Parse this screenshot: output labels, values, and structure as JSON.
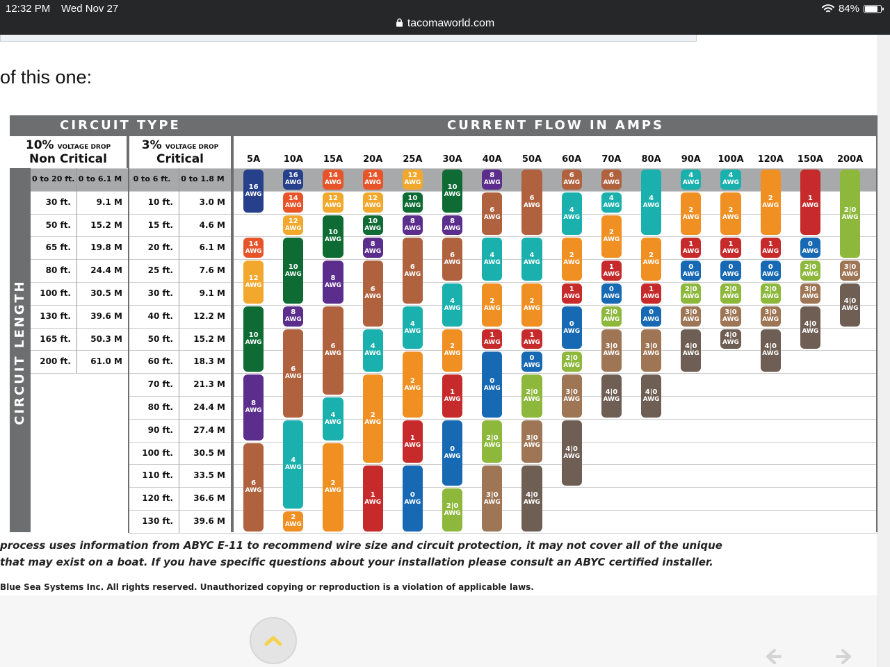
{
  "status_bar": {
    "time": "12:32 PM",
    "date": "Wed Nov 27",
    "url": "tacomaworld.com",
    "battery": "84%",
    "battery_level": 0.84
  },
  "intro_text": "of this one:",
  "table": {
    "circuit_type_title": "CIRCUIT TYPE",
    "current_title": "CURRENT FLOW IN AMPS",
    "circuit_length_label": "CIRCUIT LENGTH",
    "non_critical": {
      "pct": "10%",
      "drop": "VOLTAGE DROP",
      "label": "Non Critical"
    },
    "critical": {
      "pct": "3%",
      "drop": "VOLTAGE DROP",
      "label": "Critical"
    },
    "amps": [
      "5A",
      "10A",
      "15A",
      "20A",
      "25A",
      "30A",
      "40A",
      "50A",
      "60A",
      "70A",
      "80A",
      "90A",
      "100A",
      "120A",
      "150A",
      "200A"
    ],
    "lengths": [
      [
        "0 to 20 ft.",
        "0 to 6.1 M",
        "0 to 6 ft.",
        "0 to 1.8 M"
      ],
      [
        "30 ft.",
        "9.1 M",
        "10 ft.",
        "3.0 M"
      ],
      [
        "50 ft.",
        "15.2 M",
        "15 ft.",
        "4.6 M"
      ],
      [
        "65 ft.",
        "19.8 M",
        "20 ft.",
        "6.1 M"
      ],
      [
        "80 ft.",
        "24.4 M",
        "25 ft.",
        "7.6 M"
      ],
      [
        "100 ft.",
        "30.5 M",
        "30 ft.",
        "9.1 M"
      ],
      [
        "130 ft.",
        "39.6 M",
        "40 ft.",
        "12.2 M"
      ],
      [
        "165 ft.",
        "50.3 M",
        "50 ft.",
        "15.2 M"
      ],
      [
        "200 ft.",
        "61.0 M",
        "60 ft.",
        "18.3 M"
      ],
      [
        "",
        "",
        "70 ft.",
        "21.3 M"
      ],
      [
        "",
        "",
        "80 ft.",
        "24.4 M"
      ],
      [
        "",
        "",
        "90 ft.",
        "27.4 M"
      ],
      [
        "",
        "",
        "100 ft.",
        "30.5 M"
      ],
      [
        "",
        "",
        "110 ft.",
        "33.5 M"
      ],
      [
        "",
        "",
        "120 ft.",
        "36.6 M"
      ],
      [
        "",
        "",
        "130 ft.",
        "39.6 M"
      ]
    ],
    "awg_label": "AWG",
    "awg_colors": {
      "16": "#27408b",
      "14": "#e8542a",
      "12": "#f2a82c",
      "10": "#0e6b34",
      "8": "#5b2d8c",
      "6": "#b0623f",
      "4": "#19b0ad",
      "2": "#f08f22",
      "1": "#c62a2a",
      "0": "#1769b3",
      "2|0": "#8db83c",
      "3|0": "#9e7555",
      "4|0": "#6e5e53"
    },
    "columns": [
      [
        [
          0,
          2,
          "16"
        ],
        [
          3,
          4,
          "14"
        ],
        [
          4,
          6,
          "12"
        ],
        [
          6,
          9,
          "10"
        ],
        [
          9,
          12,
          "8"
        ],
        [
          12,
          16,
          "6"
        ]
      ],
      [
        [
          0,
          1,
          "16"
        ],
        [
          1,
          2,
          "14"
        ],
        [
          2,
          3,
          "12"
        ],
        [
          3,
          6,
          "10"
        ],
        [
          6,
          7,
          "8"
        ],
        [
          7,
          11,
          "6"
        ],
        [
          11,
          15,
          "4"
        ],
        [
          15,
          16,
          "2"
        ]
      ],
      [
        [
          0,
          1,
          "14"
        ],
        [
          1,
          2,
          "12"
        ],
        [
          2,
          4,
          "10"
        ],
        [
          4,
          6,
          "8"
        ],
        [
          6,
          10,
          "6"
        ],
        [
          10,
          12,
          "4"
        ],
        [
          12,
          16,
          "2"
        ]
      ],
      [
        [
          0,
          1,
          "14"
        ],
        [
          1,
          2,
          "12"
        ],
        [
          2,
          3,
          "10"
        ],
        [
          3,
          4,
          "8"
        ],
        [
          4,
          7,
          "6"
        ],
        [
          7,
          9,
          "4"
        ],
        [
          9,
          13,
          "2"
        ],
        [
          13,
          16,
          "1"
        ]
      ],
      [
        [
          0,
          1,
          "12"
        ],
        [
          1,
          2,
          "10"
        ],
        [
          2,
          3,
          "8"
        ],
        [
          3,
          6,
          "6"
        ],
        [
          6,
          8,
          "4"
        ],
        [
          8,
          11,
          "2"
        ],
        [
          11,
          13,
          "1"
        ],
        [
          13,
          16,
          "0"
        ]
      ],
      [
        [
          0,
          2,
          "10"
        ],
        [
          2,
          3,
          "8"
        ],
        [
          3,
          5,
          "6"
        ],
        [
          5,
          7,
          "4"
        ],
        [
          7,
          9,
          "2"
        ],
        [
          9,
          11,
          "1"
        ],
        [
          11,
          14,
          "0"
        ],
        [
          14,
          16,
          "2|0"
        ]
      ],
      [
        [
          0,
          1,
          "8"
        ],
        [
          1,
          3,
          "6"
        ],
        [
          3,
          5,
          "4"
        ],
        [
          5,
          7,
          "2"
        ],
        [
          7,
          8,
          "1"
        ],
        [
          8,
          11,
          "0"
        ],
        [
          11,
          13,
          "2|0"
        ],
        [
          13,
          16,
          "3|0"
        ]
      ],
      [
        [
          0,
          3,
          "6"
        ],
        [
          3,
          5,
          "4"
        ],
        [
          5,
          7,
          "2"
        ],
        [
          7,
          8,
          "1"
        ],
        [
          8,
          9,
          "0"
        ],
        [
          9,
          11,
          "2|0"
        ],
        [
          11,
          13,
          "3|0"
        ],
        [
          13,
          16,
          "4|0"
        ]
      ],
      [
        [
          0,
          1,
          "6"
        ],
        [
          1,
          3,
          "4"
        ],
        [
          3,
          5,
          "2"
        ],
        [
          5,
          6,
          "1"
        ],
        [
          6,
          8,
          "0"
        ],
        [
          8,
          9,
          "2|0"
        ],
        [
          9,
          11,
          "3|0"
        ],
        [
          11,
          14,
          "4|0"
        ]
      ],
      [
        [
          0,
          1,
          "6"
        ],
        [
          1,
          2,
          "4"
        ],
        [
          2,
          4,
          "2"
        ],
        [
          4,
          5,
          "1"
        ],
        [
          5,
          6,
          "0"
        ],
        [
          6,
          7,
          "2|0"
        ],
        [
          7,
          9,
          "3|0"
        ],
        [
          9,
          11,
          "4|0"
        ]
      ],
      [
        [
          0,
          3,
          "4"
        ],
        [
          3,
          5,
          "2"
        ],
        [
          5,
          6,
          "1"
        ],
        [
          6,
          7,
          "0"
        ],
        [
          7,
          9,
          "3|0"
        ],
        [
          9,
          11,
          "4|0"
        ]
      ],
      [
        [
          0,
          1,
          "4"
        ],
        [
          1,
          3,
          "2"
        ],
        [
          3,
          4,
          "1"
        ],
        [
          4,
          5,
          "0"
        ],
        [
          5,
          6,
          "2|0"
        ],
        [
          6,
          7,
          "3|0"
        ],
        [
          7,
          9,
          "4|0"
        ]
      ],
      [
        [
          0,
          1,
          "4"
        ],
        [
          1,
          3,
          "2"
        ],
        [
          3,
          4,
          "1"
        ],
        [
          4,
          5,
          "0"
        ],
        [
          5,
          6,
          "2|0"
        ],
        [
          6,
          7,
          "3|0"
        ],
        [
          7,
          8,
          "4|0"
        ]
      ],
      [
        [
          0,
          3,
          "2"
        ],
        [
          3,
          4,
          "1"
        ],
        [
          4,
          5,
          "0"
        ],
        [
          5,
          6,
          "2|0"
        ],
        [
          6,
          7,
          "3|0"
        ],
        [
          7,
          9,
          "4|0"
        ]
      ],
      [
        [
          0,
          3,
          "1"
        ],
        [
          3,
          4,
          "0"
        ],
        [
          4,
          5,
          "2|0"
        ],
        [
          5,
          6,
          "3|0"
        ],
        [
          6,
          8,
          "4|0"
        ]
      ],
      [
        [
          0,
          4,
          "2|0"
        ],
        [
          4,
          5,
          "3|0"
        ],
        [
          5,
          7,
          "4|0"
        ]
      ]
    ]
  },
  "footer": {
    "line1": "process uses information from ABYC E-11 to recommend wire size and circuit protection, it may not cover all of the unique",
    "line2": "that may exist on a boat. If you have specific questions about your installation please consult an ABYC certified installer.",
    "line3": "Blue Sea Systems Inc. All rights reserved. Unauthorized copying or reproduction is a violation of applicable laws."
  }
}
